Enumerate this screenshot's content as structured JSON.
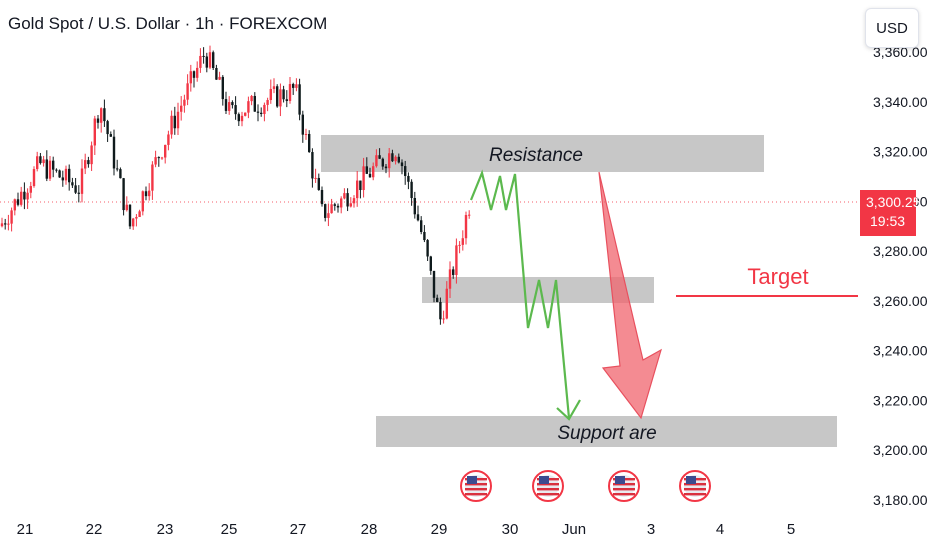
{
  "header": {
    "title": "Gold Spot / U.S. Dollar · 1h · FOREXCOM",
    "currency_button": "USD"
  },
  "price_badge": {
    "price": "3,300.25",
    "countdown": "19:53",
    "color": "#f23645"
  },
  "colors": {
    "up": "#f23645",
    "down": "#0f1a1c",
    "zone": "#bdbdbd",
    "path": "#5cb94e",
    "arrow": "#f0646e",
    "target_line": "#f23645"
  },
  "chart_data": {
    "type": "candlestick",
    "instrument": "Gold Spot / U.S. Dollar",
    "timeframe": "1h",
    "source": "FOREXCOM",
    "ylim": [
      3180,
      3360
    ],
    "y_ticks": [
      "3,180.00",
      "3,200.00",
      "3,220.00",
      "3,240.00",
      "3,260.00",
      "3,280.00",
      "3,300.00",
      "3,320.00",
      "3,340.00",
      "3,360.00"
    ],
    "y_tick_values": [
      3180,
      3200,
      3220,
      3240,
      3260,
      3280,
      3300,
      3320,
      3340,
      3360
    ],
    "x_ticks": [
      "21",
      "22",
      "23",
      "25",
      "27",
      "28",
      "29",
      "30",
      "Jun",
      "3",
      "4",
      "5"
    ],
    "last_price": 3300.25,
    "approx_close_path": [
      {
        "date": "21",
        "price": 3290
      },
      {
        "date": "21",
        "price": 3315
      },
      {
        "date": "22",
        "price": 3305
      },
      {
        "date": "22",
        "price": 3340
      },
      {
        "date": "23",
        "price": 3290
      },
      {
        "date": "23",
        "price": 3320
      },
      {
        "date": "25",
        "price": 3360
      },
      {
        "date": "25",
        "price": 3335
      },
      {
        "date": "27",
        "price": 3345
      },
      {
        "date": "27",
        "price": 3295
      },
      {
        "date": "28",
        "price": 3300
      },
      {
        "date": "28",
        "price": 3322
      },
      {
        "date": "29",
        "price": 3290
      },
      {
        "date": "29",
        "price": 3252
      },
      {
        "date": "29",
        "price": 3300
      }
    ],
    "zones": [
      {
        "label": "Resistance",
        "from": 3312,
        "to": 3327
      },
      {
        "label": "",
        "from": 3260,
        "to": 3270
      },
      {
        "label": "Support are",
        "from": 3202,
        "to": 3214
      }
    ],
    "target": {
      "label": "Target",
      "price": 3262
    },
    "event_markers": 4
  }
}
